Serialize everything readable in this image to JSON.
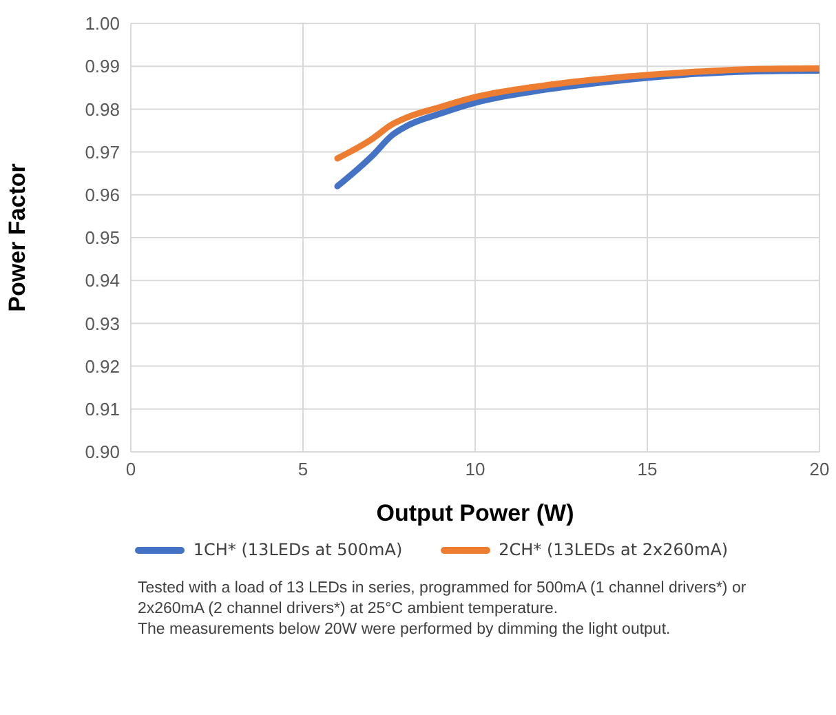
{
  "chart_data": {
    "type": "line",
    "xlabel": "Output Power (W)",
    "ylabel": "Power Factor",
    "xlim": [
      0,
      20
    ],
    "xticks": [
      0,
      5,
      10,
      15,
      20
    ],
    "ylim": [
      0.9,
      1.0
    ],
    "yticks": [
      {
        "value": 0.9,
        "label": "0.90"
      },
      {
        "value": 0.91,
        "label": "0.91"
      },
      {
        "value": 0.92,
        "label": "0.92"
      },
      {
        "value": 0.93,
        "label": "0.93"
      },
      {
        "value": 0.94,
        "label": "0.94"
      },
      {
        "value": 0.95,
        "label": "0.95"
      },
      {
        "value": 0.96,
        "label": "0.96"
      },
      {
        "value": 0.97,
        "label": "0.97"
      },
      {
        "value": 0.98,
        "label": "0.98"
      },
      {
        "value": 0.99,
        "label": "0.99"
      },
      {
        "value": 1.0,
        "label": "1.00"
      }
    ],
    "grid": true,
    "legend": "bottom",
    "marker": "none",
    "line_style": "solid",
    "x": [
      6,
      7,
      7.6,
      8,
      9,
      10,
      12,
      14,
      16,
      18,
      20
    ],
    "series": [
      {
        "name": "1CH* (13LEDs at 500mA)",
        "color": "#4472c4",
        "values": [
          0.962,
          0.969,
          0.974,
          0.976,
          0.979,
          0.9815,
          0.9845,
          0.9865,
          0.988,
          0.9888,
          0.989
        ]
      },
      {
        "name": "2CH* (13LEDs at 2x260mA)",
        "color": "#ed7d31",
        "values": [
          0.9685,
          0.973,
          0.9765,
          0.978,
          0.9805,
          0.9828,
          0.9855,
          0.9873,
          0.9885,
          0.9893,
          0.9895
        ]
      }
    ],
    "annotations": [
      "Tested with a load of 13 LEDs in series, programmed for 500mA (1 channel drivers*) or 2x260mA (2 channel drivers*) at 25°C ambient temperature.",
      "The measurements below 20W were performed by dimming the light output."
    ]
  }
}
